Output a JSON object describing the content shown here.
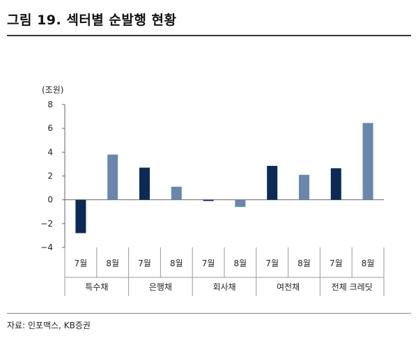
{
  "figure": {
    "title": "그림 19. 섹터별 순발행 현황",
    "source": "자료: 인포맥스, KB증권"
  },
  "chart_data": {
    "type": "bar",
    "ylabel": "(조원)",
    "ylim": [
      -4,
      8
    ],
    "yticks": [
      8,
      6,
      4,
      2,
      0,
      -2,
      -4
    ],
    "ytick_labels": [
      "8",
      "6",
      "4",
      "2",
      "0",
      "−2",
      "−4"
    ],
    "groups": [
      {
        "name": "특수채",
        "bars": [
          {
            "label": "7월",
            "value": -2.8
          },
          {
            "label": "8월",
            "value": 3.8
          }
        ]
      },
      {
        "name": "은행채",
        "bars": [
          {
            "label": "7월",
            "value": 2.7
          },
          {
            "label": "8월",
            "value": 1.1
          }
        ]
      },
      {
        "name": "회사채",
        "bars": [
          {
            "label": "7월",
            "value": -0.1
          },
          {
            "label": "8월",
            "value": -0.6
          }
        ]
      },
      {
        "name": "여전채",
        "bars": [
          {
            "label": "7월",
            "value": 2.85
          },
          {
            "label": "8월",
            "value": 2.1
          }
        ]
      },
      {
        "name": "전체 크레딧",
        "bars": [
          {
            "label": "7월",
            "value": 2.65
          },
          {
            "label": "8월",
            "value": 6.45
          }
        ]
      }
    ],
    "colors": {
      "july": "#0b2a55",
      "august": "#6a86ad"
    },
    "grid": false
  }
}
